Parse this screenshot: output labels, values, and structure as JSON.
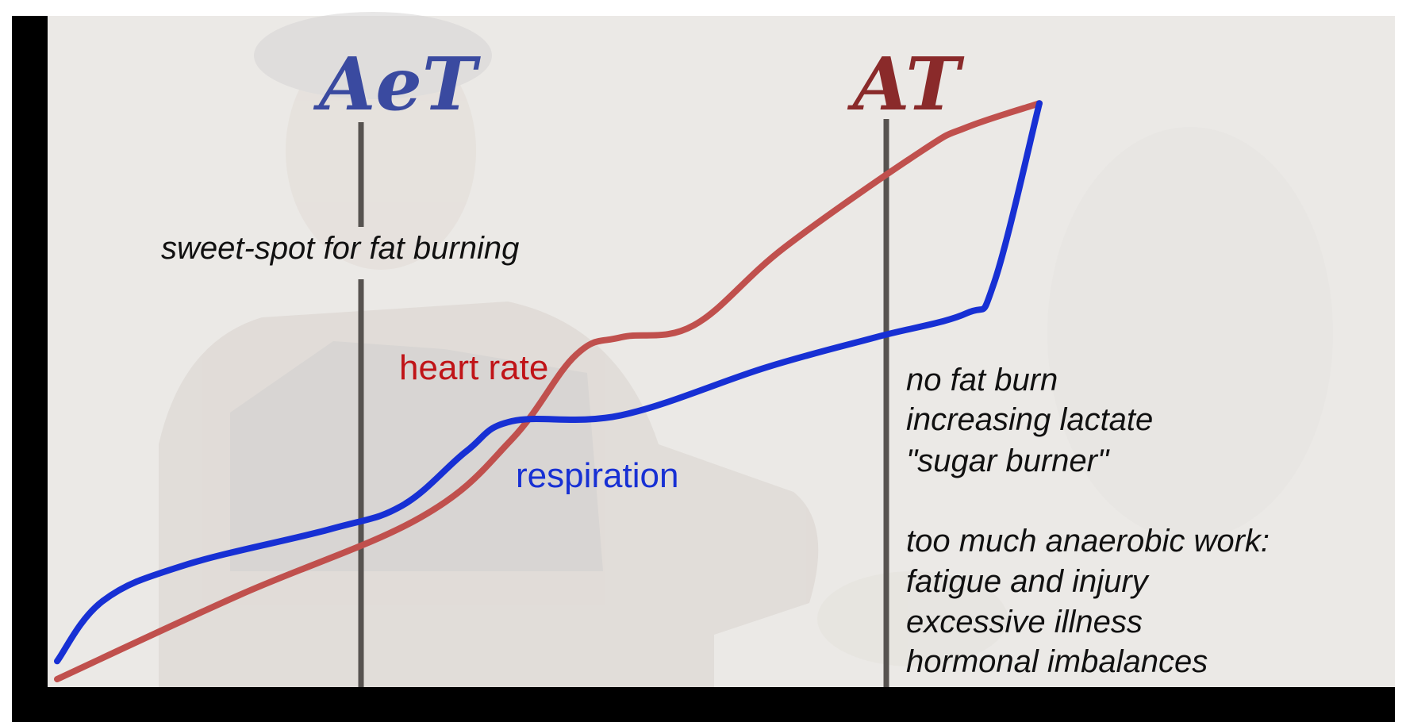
{
  "chart_data": {
    "type": "line",
    "title": "",
    "xlabel": "",
    "ylabel": "",
    "grid": false,
    "legend": "none",
    "markers": [
      {
        "label": "AeT",
        "color": "#3a4aa0"
      },
      {
        "label": "AT",
        "color": "#8a2a2a"
      }
    ],
    "series": [
      {
        "name": "heart rate",
        "color": "#c0504d",
        "points": [
          [
            0,
            0
          ],
          [
            20,
            14
          ],
          [
            40,
            27
          ],
          [
            50,
            40
          ],
          [
            57,
            54
          ],
          [
            62,
            57
          ],
          [
            70,
            59
          ],
          [
            80,
            72
          ],
          [
            95,
            88
          ],
          [
            100,
            92
          ],
          [
            108,
            96
          ]
        ]
      },
      {
        "name": "respiration",
        "color": "#1730d4",
        "points": [
          [
            0,
            3
          ],
          [
            5,
            13
          ],
          [
            14,
            19
          ],
          [
            30,
            25
          ],
          [
            38,
            29
          ],
          [
            45,
            38
          ],
          [
            50,
            43
          ],
          [
            62,
            44
          ],
          [
            78,
            52
          ],
          [
            90,
            57
          ],
          [
            100,
            61
          ],
          [
            103,
            66
          ],
          [
            108,
            96
          ]
        ]
      }
    ],
    "annotations": [
      "sweet-spot for fat burning",
      "no fat burn",
      "increasing lactate",
      "\"sugar burner\"",
      "too much anaerobic work:",
      "fatigue and injury",
      "excessive illness",
      "hormonal imbalances"
    ]
  }
}
